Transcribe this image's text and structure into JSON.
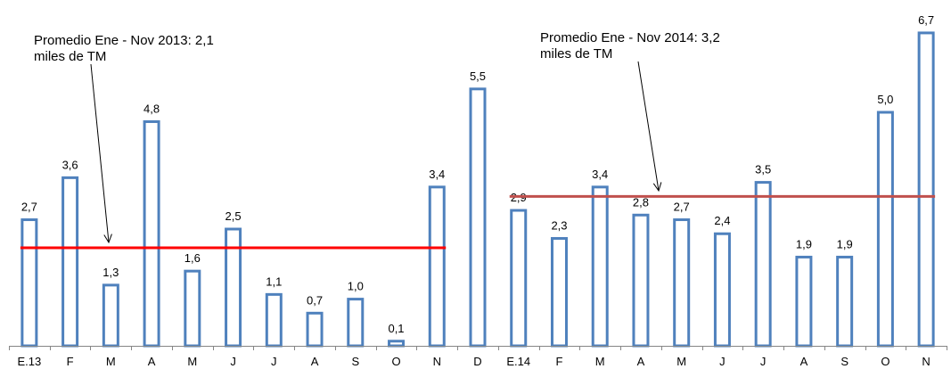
{
  "chart_data": {
    "type": "bar",
    "categories": [
      "E.13",
      "F",
      "M",
      "A",
      "M",
      "J",
      "J",
      "A",
      "S",
      "O",
      "N",
      "D",
      "E.14",
      "F",
      "M",
      "A",
      "M",
      "J",
      "J",
      "A",
      "S",
      "O",
      "N"
    ],
    "values": [
      2.7,
      3.6,
      1.3,
      4.8,
      1.6,
      2.5,
      1.1,
      0.7,
      1.0,
      0.1,
      3.4,
      5.5,
      2.9,
      2.3,
      3.4,
      2.8,
      2.7,
      2.4,
      3.5,
      1.9,
      1.9,
      5.0,
      6.7
    ],
    "value_labels": [
      "2,7",
      "3,6",
      "1,3",
      "4,8",
      "1,6",
      "2,5",
      "1,1",
      "0,7",
      "1,0",
      "0,1",
      "3,4",
      "5,5",
      "2,9",
      "2,3",
      "3,4",
      "2,8",
      "2,7",
      "2,4",
      "3,5",
      "1,9",
      "1,9",
      "5,0",
      "6,7"
    ],
    "ylim": [
      0,
      6.7
    ],
    "grid": false,
    "bar_color": "#4f81bd",
    "bar_fill": "#ffffff",
    "reference_lines": [
      {
        "value": 2.1,
        "from_index": 0,
        "to_index": 10,
        "color": "#ff0000"
      },
      {
        "value": 3.2,
        "from_index": 12,
        "to_index": 22,
        "color": "#c0504d"
      }
    ],
    "annotations": [
      {
        "lines": [
          "Promedio Ene - Nov 2013: 2,1",
          "miles de TM"
        ],
        "points_to_index": 2
      },
      {
        "lines": [
          "Promedio  Ene - Nov 2014: 3,2",
          "miles de TM"
        ],
        "points_to_index": 15
      }
    ]
  }
}
